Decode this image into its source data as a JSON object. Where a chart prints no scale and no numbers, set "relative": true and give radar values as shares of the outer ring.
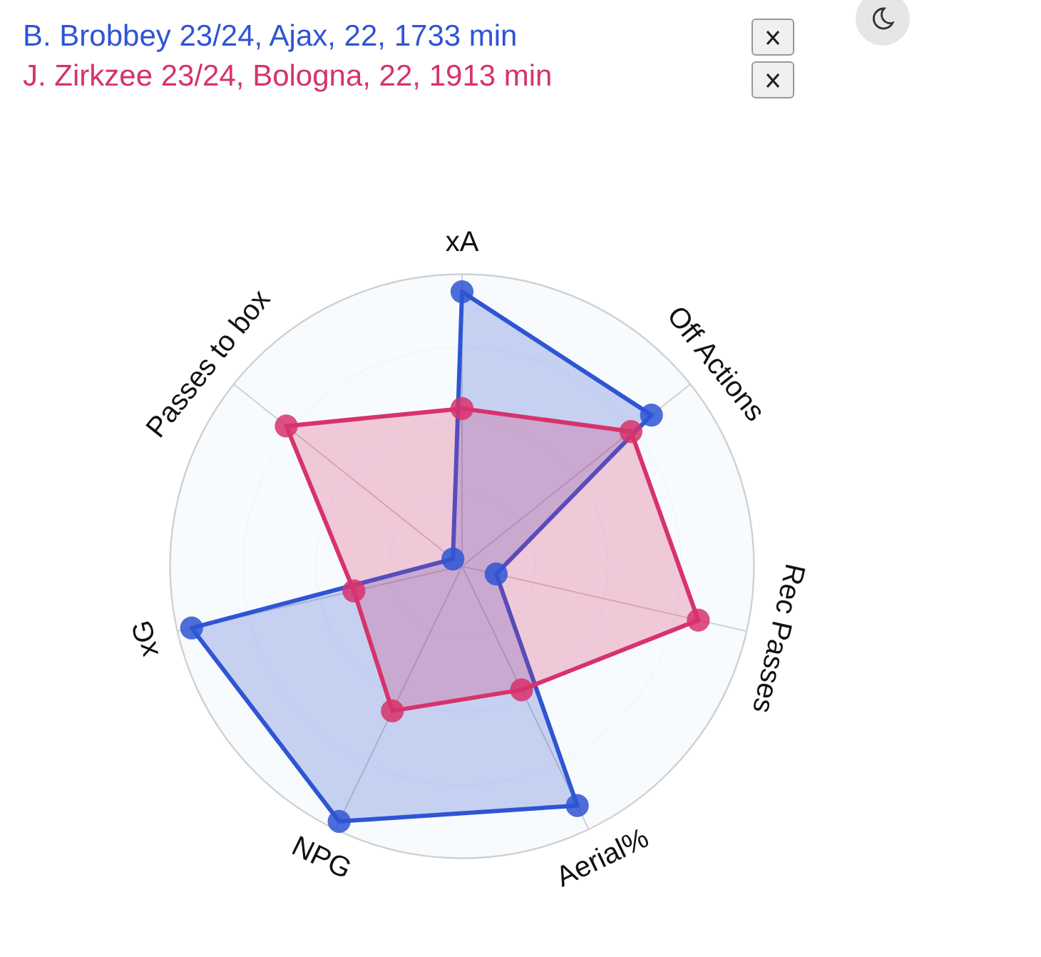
{
  "chart_data": {
    "type": "radar",
    "relative": true,
    "grid": true,
    "legend": "top left",
    "marker": "circle",
    "categories": [
      "xA",
      "Off Actions",
      "Rec Passes",
      "Aerial%",
      "NPG",
      "xG",
      "Passes to box"
    ],
    "series": [
      {
        "name": "B. Brobbey 23/24, Ajax, 22, 1733 min",
        "color": "#2f55d4",
        "values": [
          0.94,
          0.83,
          0.12,
          0.91,
          0.97,
          0.95,
          0.04
        ]
      },
      {
        "name": "J. Zirkzee 23/24, Bologna, 22, 1913 min",
        "color": "#d6336c",
        "values": [
          0.54,
          0.74,
          0.83,
          0.47,
          0.55,
          0.38,
          0.77
        ]
      }
    ]
  }
}
